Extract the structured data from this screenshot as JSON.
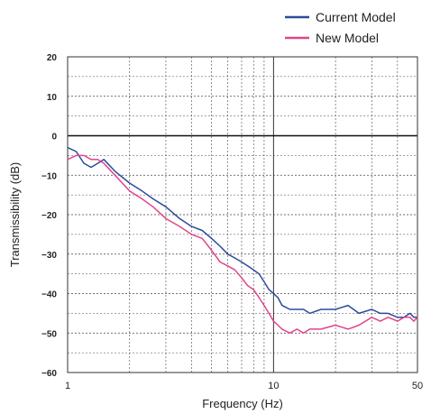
{
  "chart_data": {
    "type": "line",
    "title": "",
    "xlabel": "Frequency (Hz)",
    "ylabel": "Transmissibility (dB)",
    "xscale": "log",
    "xlim": [
      1,
      50
    ],
    "ylim": [
      -60,
      20
    ],
    "x_tick_labels": [
      {
        "value": 1,
        "label": "1"
      },
      {
        "value": 10,
        "label": "10"
      },
      {
        "value": 50,
        "label": "50"
      }
    ],
    "y_tick_labels": [
      {
        "value": 20,
        "label": "20"
      },
      {
        "value": 10,
        "label": "10"
      },
      {
        "value": 0,
        "label": "0"
      },
      {
        "value": -10,
        "label": "−10"
      },
      {
        "value": -20,
        "label": "−20"
      },
      {
        "value": -30,
        "label": "−30"
      },
      {
        "value": -40,
        "label": "−40"
      },
      {
        "value": -50,
        "label": "−50"
      },
      {
        "value": -60,
        "label": "−60"
      }
    ],
    "grid": true,
    "legend_position": "top-right",
    "series": [
      {
        "name": "Current Model",
        "color": "#2b4b9b",
        "x": [
          1.0,
          1.1,
          1.2,
          1.3,
          1.4,
          1.5,
          1.7,
          2.0,
          2.3,
          2.6,
          3.0,
          3.5,
          4.0,
          4.5,
          5.0,
          5.5,
          6.0,
          6.5,
          7.0,
          7.5,
          8.0,
          8.5,
          9.0,
          9.5,
          10.0,
          10.5,
          11.0,
          12.0,
          13.0,
          14.0,
          15.0,
          17.0,
          20.0,
          23.0,
          26.0,
          30.0,
          33.0,
          36.0,
          40.0,
          43.0,
          46.0,
          48.0,
          50.0
        ],
        "y": [
          -3,
          -4,
          -7,
          -8,
          -7,
          -6,
          -9,
          -12,
          -14,
          -16,
          -18,
          -21,
          -23,
          -24,
          -26,
          -28,
          -30,
          -31,
          -32,
          -33,
          -34,
          -35,
          -37,
          -39,
          -40,
          -41,
          -43,
          -44,
          -44,
          -44,
          -45,
          -44,
          -44,
          -43,
          -45,
          -44,
          -45,
          -45,
          -46,
          -46,
          -45,
          -46,
          -46
        ]
      },
      {
        "name": "New Model",
        "color": "#e4438a",
        "x": [
          1.0,
          1.1,
          1.2,
          1.3,
          1.4,
          1.5,
          1.7,
          2.0,
          2.3,
          2.6,
          3.0,
          3.5,
          4.0,
          4.5,
          5.0,
          5.5,
          6.0,
          6.5,
          7.0,
          7.5,
          8.0,
          8.5,
          9.0,
          9.5,
          10.0,
          10.5,
          11.0,
          12.0,
          13.0,
          14.0,
          15.0,
          17.0,
          20.0,
          23.0,
          26.0,
          30.0,
          33.0,
          36.0,
          40.0,
          43.0,
          46.0,
          48.0,
          50.0
        ],
        "y": [
          -6,
          -5,
          -5,
          -6,
          -6,
          -7,
          -10,
          -14,
          -16,
          -18,
          -21,
          -23,
          -25,
          -26,
          -29,
          -32,
          -33,
          -34,
          -36,
          -38,
          -39,
          -41,
          -43,
          -45,
          -47,
          -48,
          -49,
          -50,
          -49,
          -50,
          -49,
          -49,
          -48,
          -49,
          -48,
          -46,
          -47,
          -46,
          -47,
          -46,
          -46,
          -47,
          -46
        ]
      }
    ]
  }
}
